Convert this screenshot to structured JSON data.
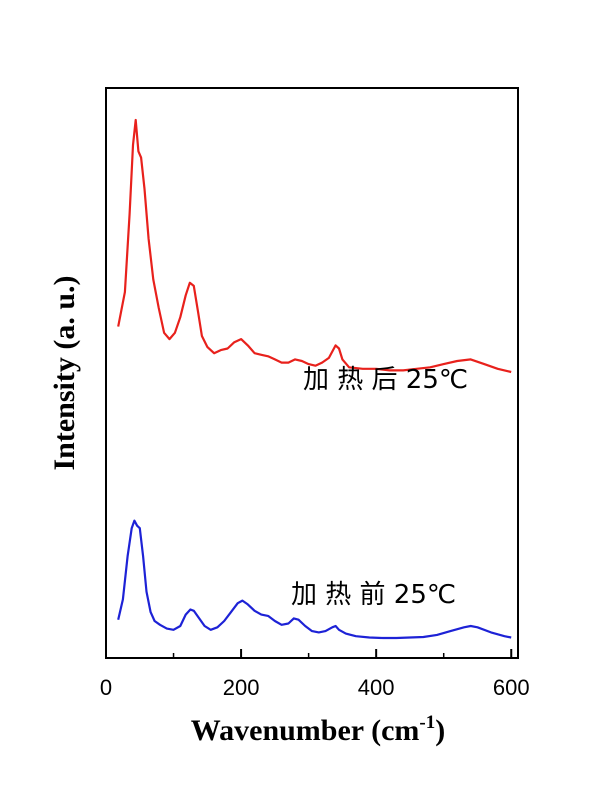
{
  "chart_data": {
    "type": "line",
    "title": "",
    "xlabel": "Wavenumber (cm",
    "xlabel_sup": "-1",
    "xlabel_end": ")",
    "ylabel": "Intensity (a. u.)",
    "xlim": [
      0,
      610
    ],
    "xticks": [
      0,
      200,
      400,
      600
    ],
    "xticks_minor": [
      100,
      300,
      500
    ],
    "y_tick_labels": false,
    "grid": false,
    "legend": "none",
    "series": [
      {
        "name": "",
        "label": "加 热 后 25℃",
        "color": "#e8211c",
        "x": [
          18,
          28,
          35,
          40,
          44,
          48,
          52,
          57,
          63,
          70,
          78,
          86,
          94,
          102,
          110,
          118,
          124,
          130,
          136,
          142,
          150,
          160,
          170,
          180,
          190,
          200,
          210,
          220,
          230,
          240,
          250,
          260,
          270,
          280,
          290,
          300,
          310,
          320,
          330,
          340,
          345,
          350,
          360,
          380,
          400,
          420,
          440,
          460,
          480,
          500,
          520,
          540,
          560,
          580,
          600
        ],
        "y": [
          0.34,
          0.45,
          0.7,
          0.92,
          1.0,
          0.9,
          0.88,
          0.78,
          0.62,
          0.49,
          0.4,
          0.32,
          0.3,
          0.32,
          0.37,
          0.44,
          0.48,
          0.47,
          0.39,
          0.31,
          0.275,
          0.255,
          0.265,
          0.27,
          0.29,
          0.3,
          0.28,
          0.255,
          0.25,
          0.245,
          0.235,
          0.225,
          0.225,
          0.235,
          0.23,
          0.22,
          0.215,
          0.225,
          0.24,
          0.28,
          0.27,
          0.235,
          0.21,
          0.205,
          0.205,
          0.2,
          0.2,
          0.205,
          0.21,
          0.22,
          0.23,
          0.235,
          0.22,
          0.205,
          0.195
        ]
      },
      {
        "name": "",
        "label": "加 热 前  25℃",
        "color": "#1d22d6",
        "x": [
          18,
          25,
          32,
          38,
          42,
          46,
          50,
          55,
          60,
          66,
          72,
          80,
          90,
          100,
          110,
          118,
          125,
          130,
          138,
          146,
          155,
          165,
          175,
          185,
          195,
          202,
          210,
          220,
          230,
          240,
          250,
          260,
          270,
          278,
          285,
          295,
          305,
          315,
          325,
          335,
          340,
          345,
          355,
          370,
          390,
          410,
          430,
          450,
          470,
          490,
          510,
          530,
          540,
          550,
          570,
          590,
          600
        ],
        "y": [
          0.08,
          0.16,
          0.33,
          0.44,
          0.47,
          0.45,
          0.44,
          0.33,
          0.19,
          0.11,
          0.075,
          0.06,
          0.045,
          0.04,
          0.055,
          0.1,
          0.12,
          0.115,
          0.085,
          0.055,
          0.04,
          0.05,
          0.075,
          0.11,
          0.145,
          0.155,
          0.14,
          0.115,
          0.1,
          0.095,
          0.075,
          0.06,
          0.065,
          0.085,
          0.08,
          0.055,
          0.035,
          0.03,
          0.035,
          0.05,
          0.055,
          0.04,
          0.025,
          0.015,
          0.01,
          0.008,
          0.008,
          0.01,
          0.012,
          0.02,
          0.035,
          0.05,
          0.055,
          0.05,
          0.03,
          0.015,
          0.01
        ]
      }
    ]
  }
}
